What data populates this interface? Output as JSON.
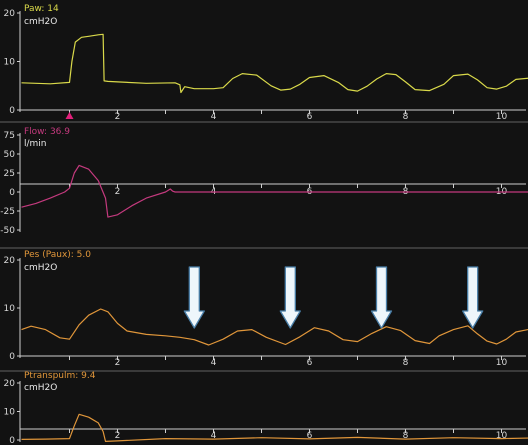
{
  "colors": {
    "background": "#121212",
    "axis": "#cfcfcf",
    "tick_text": "#d8d8d8",
    "marker": "#e0207a",
    "arrow_fill": "#eef6fb",
    "arrow_edge": "#4a7fa8"
  },
  "time_axis": {
    "ticks": [
      2,
      4,
      6,
      8,
      10
    ],
    "labels": [
      "2",
      "4",
      "6",
      "8",
      "10"
    ]
  },
  "chart_data": [
    {
      "type": "line",
      "title": "Paw: 14",
      "ylabel": "cmH2O",
      "ylim": [
        0,
        20
      ],
      "yticks": [
        0,
        10,
        20
      ],
      "color": "#d9d94a",
      "marker_x": 1.0,
      "x": [
        0.0,
        0.6,
        1.0,
        1.05,
        1.12,
        1.25,
        1.4,
        1.6,
        1.7,
        1.72,
        1.8,
        2.0,
        2.6,
        3.2,
        3.3,
        3.32,
        3.4,
        3.6,
        4.0,
        4.2,
        4.4,
        4.6,
        4.9,
        5.2,
        5.4,
        5.6,
        5.8,
        6.0,
        6.3,
        6.6,
        6.8,
        7.0,
        7.2,
        7.4,
        7.6,
        7.8,
        8.0,
        8.2,
        8.5,
        8.8,
        9.0,
        9.3,
        9.5,
        9.7,
        9.9,
        10.1,
        10.3,
        10.6
      ],
      "y": [
        5.6,
        5.4,
        5.7,
        10.0,
        14.0,
        15.0,
        15.2,
        15.5,
        15.6,
        6.0,
        5.9,
        5.8,
        5.5,
        5.6,
        5.2,
        3.6,
        4.8,
        4.4,
        4.4,
        4.6,
        6.5,
        7.5,
        7.2,
        5.0,
        4.1,
        4.3,
        5.3,
        6.7,
        7.1,
        5.7,
        4.2,
        3.9,
        4.9,
        6.4,
        7.5,
        7.3,
        5.8,
        4.2,
        4.0,
        5.3,
        7.1,
        7.4,
        6.2,
        4.6,
        4.3,
        4.9,
        6.3,
        6.6
      ]
    },
    {
      "type": "line",
      "title": "Flow: 36.9",
      "ylabel": "l/min",
      "ylim": [
        -50,
        75
      ],
      "yticks": [
        75,
        50,
        25,
        0,
        -25,
        -50
      ],
      "color": "#c43a7e",
      "x": [
        0.0,
        0.3,
        0.6,
        0.9,
        1.0,
        1.1,
        1.2,
        1.4,
        1.6,
        1.75,
        1.8,
        2.0,
        2.3,
        2.6,
        3.0,
        3.1,
        3.15,
        3.2,
        10.6
      ],
      "y": [
        -20,
        -15,
        -8,
        0,
        5,
        25,
        35,
        30,
        15,
        -8,
        -33,
        -30,
        -18,
        -8,
        0,
        4,
        1,
        0,
        0
      ]
    },
    {
      "type": "line",
      "title": "Pes (Paux): 5.0",
      "ylabel": "cmH2O",
      "ylim": [
        0,
        20
      ],
      "yticks": [
        0,
        10,
        20
      ],
      "color": "#e0963a",
      "annotation_arrows_at_x": [
        3.6,
        5.6,
        7.5,
        9.4
      ],
      "x": [
        0.0,
        0.2,
        0.5,
        0.8,
        1.0,
        1.2,
        1.4,
        1.65,
        1.8,
        2.0,
        2.2,
        2.6,
        3.0,
        3.3,
        3.6,
        3.9,
        4.2,
        4.5,
        4.8,
        5.1,
        5.5,
        5.8,
        6.1,
        6.4,
        6.7,
        7.0,
        7.3,
        7.6,
        7.9,
        8.2,
        8.5,
        8.7,
        9.0,
        9.3,
        9.5,
        9.7,
        9.9,
        10.1,
        10.3,
        10.6
      ],
      "y": [
        5.5,
        6.2,
        5.5,
        3.8,
        3.5,
        6.5,
        8.5,
        9.8,
        9.2,
        6.8,
        5.2,
        4.5,
        4.2,
        3.9,
        3.4,
        2.3,
        3.5,
        5.2,
        5.5,
        3.9,
        2.4,
        4.0,
        5.9,
        5.2,
        3.4,
        3.0,
        4.7,
        6.1,
        5.3,
        3.2,
        2.6,
        4.2,
        5.5,
        6.3,
        4.6,
        3.1,
        2.5,
        3.5,
        5.0,
        5.6
      ]
    },
    {
      "type": "line",
      "title": "Ptranspulm: 9.4",
      "ylabel": "cmH2O",
      "ylim": [
        0,
        20
      ],
      "yticks": [
        0,
        10,
        20
      ],
      "color": "#e0963a",
      "x": [
        0.0,
        0.5,
        1.0,
        1.1,
        1.2,
        1.4,
        1.6,
        1.7,
        1.75,
        2.0,
        3.0,
        4.0,
        5.0,
        6.0,
        7.0,
        8.0,
        9.0,
        10.0,
        10.6
      ],
      "y": [
        0.2,
        0.3,
        0.5,
        5.0,
        9.0,
        8.0,
        6.0,
        3.0,
        -0.5,
        -0.3,
        0.5,
        0.3,
        0.8,
        0.4,
        0.9,
        0.3,
        0.8,
        0.5,
        0.7
      ]
    }
  ]
}
